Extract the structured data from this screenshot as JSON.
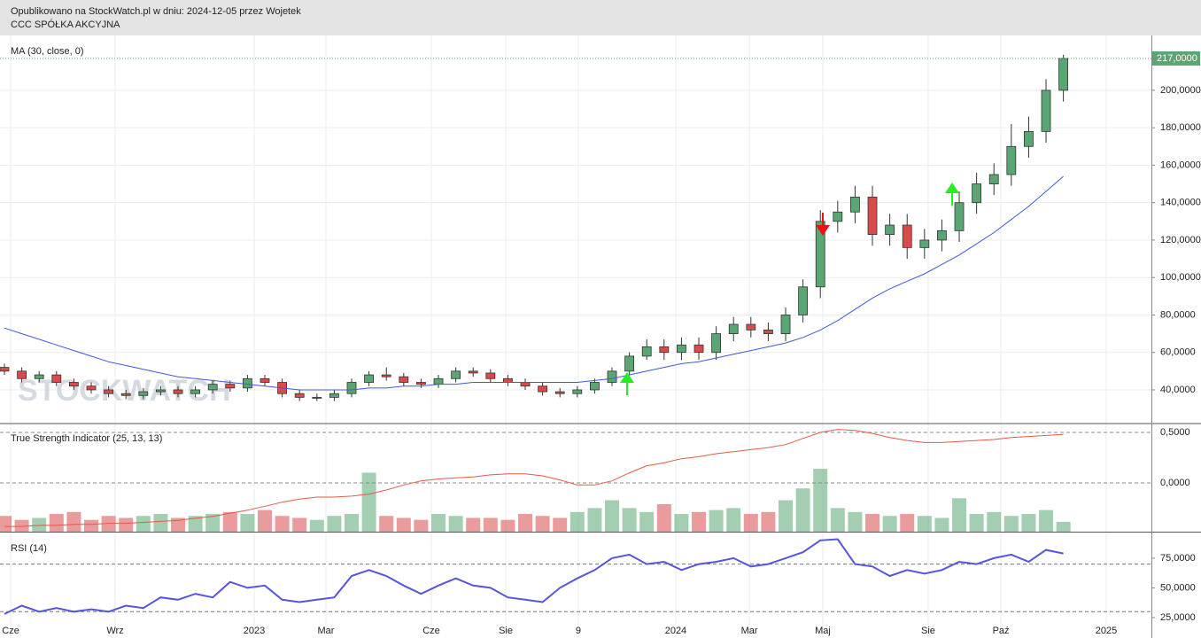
{
  "chart_data": {
    "type": "candlestick",
    "title": "Opublikowano na StockWatch.pl w dniu: 2024-12-05 przez Wojetek",
    "subtitle": "CCC SPÓŁKA AKCYJNA",
    "watermark": "STOCKWATCH",
    "ma_label": "MA (30, close, 0)",
    "tsi_label": "True Strength Indicator (25, 13, 13)",
    "rsi_label": "RSI (14)",
    "up_color": "#5aa672",
    "down_color": "#d94b4b",
    "grid": true,
    "xlim": [
      -0.255,
      66.07
    ],
    "xticks": [
      {
        "value": 0.36,
        "label": "Cze"
      },
      {
        "value": 6.38,
        "label": "Wrz"
      },
      {
        "value": 14.39,
        "label": "2023"
      },
      {
        "value": 18.52,
        "label": "Mar"
      },
      {
        "value": 24.59,
        "label": "Cze"
      },
      {
        "value": 28.88,
        "label": "Sie"
      },
      {
        "value": 33.06,
        "label": "9"
      },
      {
        "value": 38.67,
        "label": "2024"
      },
      {
        "value": 42.91,
        "label": "Mar"
      },
      {
        "value": 47.14,
        "label": "Maj"
      },
      {
        "value": 53.21,
        "label": "Sie"
      },
      {
        "value": 57.4,
        "label": "Paź"
      },
      {
        "value": 63.47,
        "label": "2025"
      }
    ],
    "ylim": [
      22,
      229.3
    ],
    "yticks": [
      {
        "value": 40,
        "label": "40,0000"
      },
      {
        "value": 60,
        "label": "60,0000"
      },
      {
        "value": 80,
        "label": "80,0000"
      },
      {
        "value": 100,
        "label": "100,0000"
      },
      {
        "value": 120,
        "label": "120,0000"
      },
      {
        "value": 140,
        "label": "140,0000"
      },
      {
        "value": 160,
        "label": "160,0000"
      },
      {
        "value": 180,
        "label": "180,0000"
      },
      {
        "value": 200,
        "label": "200,0000"
      }
    ],
    "last_price_label": "217,0000",
    "open": [
      52,
      50,
      46,
      48,
      44,
      42,
      40,
      38,
      37,
      39,
      40,
      38,
      40,
      43,
      41,
      46,
      44,
      38,
      36,
      36,
      38,
      44,
      48,
      47,
      44,
      43,
      46,
      50,
      49,
      46,
      44,
      42,
      39,
      38,
      40,
      44,
      50,
      58,
      63,
      60,
      64,
      60,
      70,
      75,
      72,
      70,
      80,
      95,
      130,
      135,
      143,
      123,
      128,
      116,
      120,
      125,
      140,
      150,
      155,
      170,
      178,
      200
    ],
    "high": [
      54,
      52,
      50,
      50,
      46,
      44,
      42,
      40,
      41,
      42,
      42,
      42,
      45,
      45,
      48,
      48,
      46,
      40,
      38,
      40,
      46,
      50,
      52,
      49,
      46,
      48,
      52,
      52,
      51,
      48,
      46,
      44,
      41,
      42,
      46,
      52,
      60,
      67,
      67,
      68,
      68,
      74,
      79,
      79,
      76,
      84,
      99,
      136,
      141,
      149,
      149,
      134,
      134,
      126,
      131,
      146,
      156,
      161,
      182,
      186,
      206,
      219
    ],
    "low": [
      48,
      44,
      44,
      42,
      40,
      38,
      36,
      35,
      35,
      37,
      36,
      36,
      38,
      39,
      39,
      42,
      36,
      34,
      34,
      34,
      36,
      42,
      45,
      42,
      41,
      41,
      44,
      47,
      44,
      42,
      40,
      37,
      36,
      36,
      38,
      42,
      48,
      56,
      56,
      56,
      56,
      56,
      66,
      68,
      66,
      66,
      76,
      89,
      124,
      129,
      117,
      117,
      110,
      110,
      114,
      119,
      134,
      144,
      149,
      164,
      172,
      194
    ],
    "close": [
      50,
      46,
      48,
      44,
      42,
      40,
      38,
      37,
      39,
      40,
      38,
      40,
      43,
      41,
      46,
      44,
      38,
      36,
      36,
      38,
      44,
      48,
      47,
      44,
      43,
      46,
      50,
      49,
      46,
      44,
      42,
      39,
      38,
      40,
      44,
      50,
      58,
      63,
      60,
      64,
      60,
      70,
      75,
      72,
      70,
      80,
      95,
      130,
      135,
      143,
      123,
      128,
      116,
      120,
      125,
      140,
      150,
      155,
      170,
      178,
      200,
      217
    ],
    "ma": {
      "color": "#3d5adb",
      "values": [
        73,
        70,
        67,
        64,
        61,
        58,
        55,
        53,
        51,
        49,
        47,
        46,
        45,
        44,
        43,
        42,
        41,
        40,
        40,
        40,
        40,
        41,
        41,
        42,
        42,
        43,
        43,
        44,
        44,
        44,
        44,
        44,
        44,
        44,
        45,
        46,
        48,
        50,
        52,
        54,
        55,
        57,
        59,
        61,
        63,
        65,
        68,
        72,
        77,
        83,
        89,
        94,
        98,
        102,
        107,
        112,
        118,
        124,
        131,
        138,
        146,
        154
      ]
    },
    "tsi": {
      "color": "#e05a4a",
      "ylim": [
        -0.482,
        0.5877
      ],
      "yticks": [
        {
          "value": 0.5,
          "label": "0,5000"
        },
        {
          "value": 0,
          "label": "0,0000"
        }
      ],
      "values": [
        -0.43,
        -0.43,
        -0.42,
        -0.42,
        -0.41,
        -0.41,
        -0.4,
        -0.4,
        -0.39,
        -0.38,
        -0.37,
        -0.35,
        -0.33,
        -0.3,
        -0.27,
        -0.23,
        -0.19,
        -0.16,
        -0.14,
        -0.14,
        -0.13,
        -0.11,
        -0.07,
        -0.02,
        0.02,
        0.04,
        0.05,
        0.06,
        0.08,
        0.09,
        0.09,
        0.07,
        0.03,
        -0.02,
        -0.02,
        0.02,
        0.1,
        0.17,
        0.2,
        0.24,
        0.26,
        0.29,
        0.31,
        0.33,
        0.35,
        0.38,
        0.44,
        0.5,
        0.53,
        0.52,
        0.49,
        0.45,
        0.42,
        0.4,
        0.4,
        0.41,
        0.42,
        0.43,
        0.45,
        0.46,
        0.47,
        0.48
      ]
    },
    "volume": {
      "ylim": [
        0,
        55
      ],
      "values": [
        8,
        6,
        7,
        9,
        10,
        6,
        8,
        7,
        8,
        9,
        7,
        8,
        9,
        10,
        9,
        11,
        8,
        7,
        6,
        8,
        9,
        30,
        8,
        7,
        6,
        9,
        8,
        7,
        7,
        6,
        9,
        8,
        7,
        10,
        12,
        16,
        12,
        10,
        14,
        9,
        10,
        11,
        12,
        9,
        10,
        16,
        22,
        32,
        12,
        10,
        9,
        8,
        9,
        8,
        7,
        17,
        9,
        10,
        8,
        9,
        11,
        5
      ]
    },
    "rsi": {
      "color": "#5555dd",
      "ylim": [
        7.8,
        96.6
      ],
      "levels": [
        70,
        30
      ],
      "yticks": [
        {
          "value": 75,
          "label": "75,0000"
        },
        {
          "value": 50,
          "label": "50,0000"
        },
        {
          "value": 25,
          "label": "25,0000"
        }
      ],
      "values": [
        28,
        35,
        30,
        33,
        30,
        32,
        30,
        35,
        33,
        42,
        40,
        45,
        42,
        55,
        50,
        52,
        40,
        38,
        40,
        42,
        60,
        65,
        60,
        52,
        45,
        52,
        58,
        52,
        50,
        42,
        40,
        38,
        50,
        58,
        65,
        75,
        78,
        70,
        72,
        65,
        70,
        72,
        75,
        68,
        70,
        75,
        80,
        90,
        91,
        70,
        68,
        60,
        65,
        62,
        65,
        72,
        70,
        75,
        78,
        72,
        82,
        79
      ]
    }
  }
}
